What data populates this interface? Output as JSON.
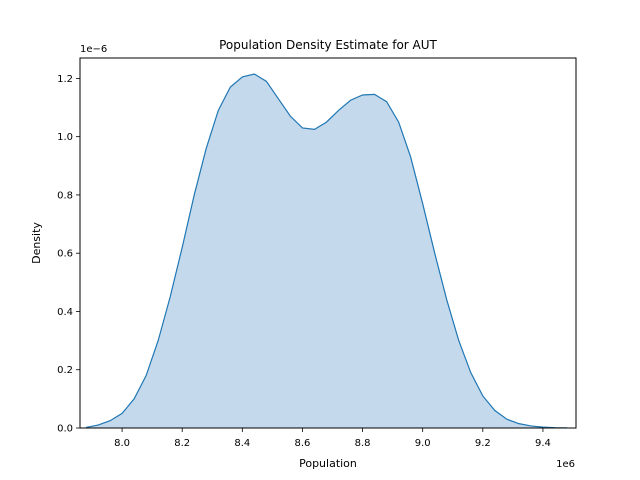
{
  "chart_data": {
    "type": "area",
    "title": "Population Density Estimate for AUT",
    "xlabel": "Population",
    "ylabel": "Density",
    "x_offset_label": "1e6",
    "y_offset_label": "1e−6",
    "xlim": [
      7.86,
      9.51
    ],
    "ylim": [
      0,
      1.27
    ],
    "x_ticks": [
      8.0,
      8.2,
      8.4,
      8.6,
      8.8,
      9.0,
      9.2,
      9.4
    ],
    "x_tick_labels": [
      "8.0",
      "8.2",
      "8.4",
      "8.6",
      "8.8",
      "9.0",
      "9.2",
      "9.4"
    ],
    "y_ticks": [
      0.0,
      0.2,
      0.4,
      0.6,
      0.8,
      1.0,
      1.2
    ],
    "y_tick_labels": [
      "0.0",
      "0.2",
      "0.4",
      "0.6",
      "0.8",
      "1.0",
      "1.2"
    ],
    "grid": false,
    "series": [
      {
        "x": [
          7.88,
          7.92,
          7.96,
          8.0,
          8.04,
          8.08,
          8.12,
          8.16,
          8.2,
          8.24,
          8.28,
          8.32,
          8.36,
          8.4,
          8.44,
          8.48,
          8.52,
          8.56,
          8.6,
          8.64,
          8.68,
          8.72,
          8.76,
          8.8,
          8.84,
          8.88,
          8.92,
          8.96,
          9.0,
          9.04,
          9.08,
          9.12,
          9.16,
          9.2,
          9.24,
          9.28,
          9.32,
          9.36,
          9.4,
          9.44,
          9.48
        ],
        "y": [
          0.002,
          0.01,
          0.025,
          0.05,
          0.1,
          0.18,
          0.3,
          0.45,
          0.62,
          0.8,
          0.96,
          1.09,
          1.17,
          1.205,
          1.215,
          1.19,
          1.13,
          1.07,
          1.03,
          1.025,
          1.05,
          1.09,
          1.125,
          1.143,
          1.145,
          1.12,
          1.05,
          0.93,
          0.77,
          0.6,
          0.44,
          0.3,
          0.19,
          0.11,
          0.06,
          0.03,
          0.015,
          0.007,
          0.003,
          0.001,
          0.0005
        ]
      }
    ],
    "colors": {
      "line": "#1f77b4",
      "fill": "#c5d9ec"
    }
  }
}
